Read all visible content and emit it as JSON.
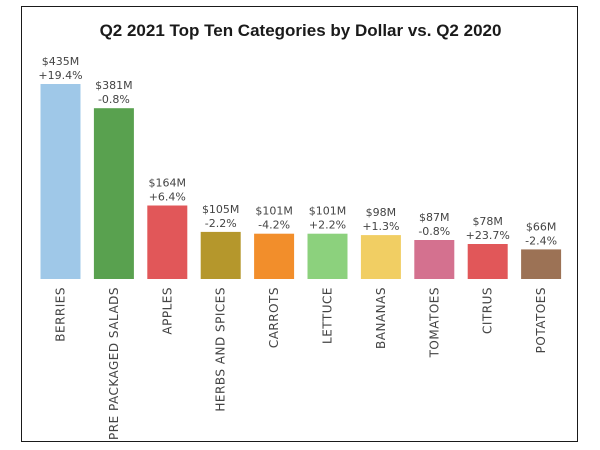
{
  "chart_data": {
    "type": "bar",
    "title": "Q2 2021 Top Ten Categories by Dollar vs. Q2 2020",
    "xlabel": "",
    "ylabel": "",
    "ylim": [
      0,
      435
    ],
    "grid": false,
    "categories": [
      "BERRIES",
      "PRE PACKAGED SALADS",
      "APPLES",
      "HERBS AND SPICES",
      "CARROTS",
      "LETTUCE",
      "BANANAS",
      "TOMATOES",
      "CITRUS",
      "POTATOES"
    ],
    "values": [
      435,
      381,
      164,
      105,
      101,
      101,
      98,
      87,
      78,
      66
    ],
    "value_labels": [
      "$435M",
      "$381M",
      "$164M",
      "$105M",
      "$101M",
      "$101M",
      "$98M",
      "$87M",
      "$78M",
      "$66M"
    ],
    "change_labels": [
      "+19.4%",
      "-0.8%",
      "+6.4%",
      "-2.2%",
      "-4.2%",
      "+2.2%",
      "+1.3%",
      "-0.8%",
      "+23.7%",
      "-2.4%"
    ],
    "colors": [
      "#9fc8e8",
      "#59a14f",
      "#e15759",
      "#b5972c",
      "#f28e2b",
      "#8cd17d",
      "#f1ce63",
      "#d4718f",
      "#e15759",
      "#9c7255"
    ]
  }
}
